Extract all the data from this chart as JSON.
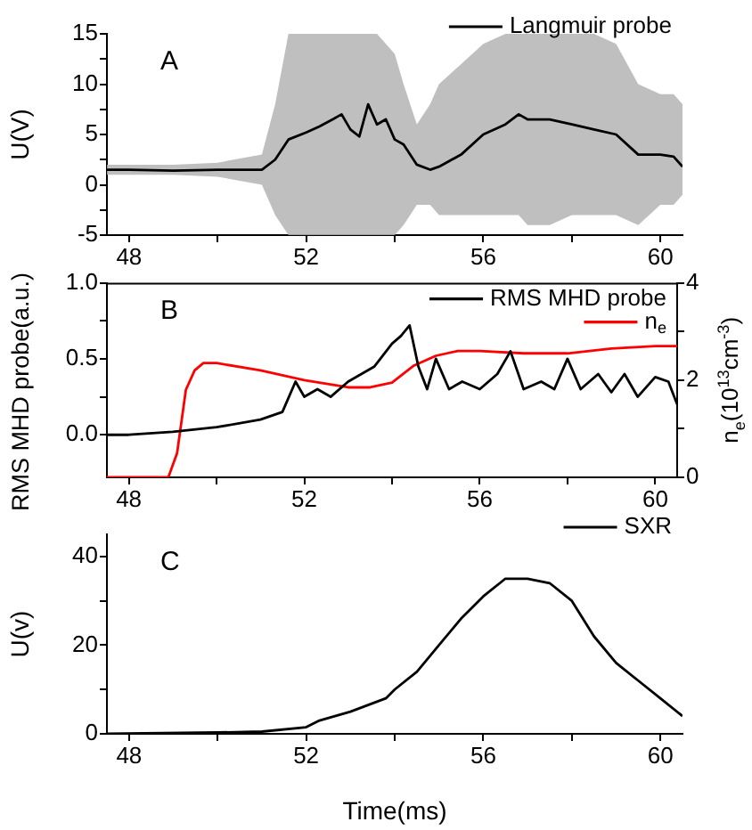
{
  "chart_data": [
    {
      "type": "line",
      "ylabel": "U(V)",
      "annotations": [
        "A"
      ],
      "xlim": [
        47.5,
        60.5
      ],
      "ylim": [
        -5,
        15
      ],
      "xticks": [
        48,
        {
          "value": 50,
          "label": null
        },
        52,
        {
          "value": 54,
          "label": null
        },
        56,
        {
          "value": 58,
          "label": null
        },
        60
      ],
      "yticks": [
        -5,
        {
          "value": -2.5,
          "label": null
        },
        0,
        {
          "value": 2.5,
          "label": null
        },
        5,
        {
          "value": 7.5,
          "label": null
        },
        10,
        {
          "value": 12.5,
          "label": null
        },
        15
      ],
      "grid": false,
      "legend": "top right",
      "marker": "none",
      "line_style": "solid",
      "series": [
        {
          "name": "Langmuir probe",
          "color": "#000000",
          "x": [
            47.5,
            48,
            49,
            50,
            51,
            51.3,
            51.6,
            52,
            52.3,
            52.6,
            52.8,
            53,
            53.2,
            53.4,
            53.6,
            53.8,
            54,
            54.2,
            54.5,
            54.8,
            55,
            55.5,
            56,
            56.5,
            56.8,
            57,
            57.5,
            58,
            58.5,
            59,
            59.5,
            60,
            60.3,
            60.5
          ],
          "values": [
            1.5,
            1.5,
            1.4,
            1.5,
            1.5,
            2.5,
            4.5,
            5.2,
            5.8,
            6.5,
            7,
            5.5,
            4.8,
            8,
            6,
            6.5,
            4.5,
            4,
            2,
            1.5,
            1.8,
            3,
            5,
            6,
            7,
            6.5,
            6.5,
            6,
            5.5,
            5,
            3,
            3,
            2.8,
            1.8
          ],
          "upper": [
            2,
            2,
            2,
            2.2,
            3,
            8,
            15,
            15,
            15,
            15,
            15,
            15,
            15,
            15,
            15,
            14,
            13,
            10,
            6,
            8,
            10,
            12,
            14,
            15,
            15,
            15,
            15,
            15,
            15,
            14,
            10,
            9,
            9,
            8
          ],
          "lower": [
            1,
            1,
            1,
            0.8,
            0,
            -3,
            -5,
            -5,
            -5,
            -5,
            -5,
            -5,
            -5,
            -5,
            -5,
            -5,
            -5,
            -4,
            -2,
            -2,
            -3,
            -3,
            -3,
            -3,
            -3,
            -4,
            -4,
            -3,
            -3,
            -3,
            -4,
            -2,
            -2,
            -1
          ]
        }
      ]
    },
    {
      "type": "line",
      "ylabel": "RMS MHD probe(a.u.)",
      "y2label": "n$_{e}$(10$^{13}$cm$^{-3}$)",
      "annotations": [
        "B"
      ],
      "xlim": [
        47.5,
        60.5
      ],
      "ylim": [
        -0.28,
        1.0
      ],
      "y2lim": [
        0,
        4
      ],
      "xticks": [
        48,
        {
          "value": 50,
          "label": null
        },
        52,
        {
          "value": 54,
          "label": null
        },
        56,
        {
          "value": 58,
          "label": null
        },
        60
      ],
      "yticks": [
        {
          "value": 0,
          "label": "0.0"
        },
        {
          "value": 0.25,
          "label": null
        },
        {
          "value": 0.5,
          "label": "0.5"
        },
        {
          "value": 0.75,
          "label": null
        },
        {
          "value": 1,
          "label": "1.0"
        }
      ],
      "y2ticks": [
        0,
        {
          "value": 1,
          "label": null
        },
        2,
        {
          "value": 3,
          "label": null
        },
        4
      ],
      "grid": false,
      "legend": "top right",
      "marker": "none",
      "line_style": "solid",
      "series": [
        {
          "name": "RMS MHD probe",
          "color": "#000000",
          "x": [
            47.5,
            48,
            49,
            50,
            51,
            51.5,
            51.8,
            52,
            52.3,
            52.6,
            53,
            53.3,
            53.6,
            54,
            54.2,
            54.4,
            54.6,
            54.8,
            55,
            55.3,
            55.6,
            56,
            56.4,
            56.7,
            57,
            57.4,
            57.7,
            58,
            58.3,
            58.7,
            59,
            59.3,
            59.6,
            60,
            60.3,
            60.5
          ],
          "values": [
            0.0,
            0.0,
            0.02,
            0.05,
            0.1,
            0.15,
            0.35,
            0.25,
            0.3,
            0.25,
            0.35,
            0.4,
            0.45,
            0.6,
            0.65,
            0.72,
            0.45,
            0.3,
            0.5,
            0.3,
            0.35,
            0.3,
            0.4,
            0.55,
            0.3,
            0.35,
            0.3,
            0.5,
            0.3,
            0.4,
            0.28,
            0.4,
            0.25,
            0.38,
            0.35,
            0.2
          ]
        },
        {
          "name": "n$_{e}$",
          "color": "#ff0000",
          "axis": "y2",
          "x": [
            47.5,
            48.9,
            49.1,
            49.3,
            49.5,
            49.7,
            50,
            51,
            52,
            53,
            53.5,
            54,
            54.5,
            55,
            55.5,
            56,
            57,
            58,
            59,
            60,
            60.5
          ],
          "values": [
            0,
            0,
            0.5,
            1.8,
            2.2,
            2.35,
            2.35,
            2.2,
            2.0,
            1.85,
            1.85,
            1.95,
            2.3,
            2.5,
            2.6,
            2.6,
            2.55,
            2.55,
            2.65,
            2.7,
            2.7
          ]
        }
      ]
    },
    {
      "type": "line",
      "ylabel": "U(v)",
      "xlabel": "Time(ms)",
      "annotations": [
        "C"
      ],
      "xlim": [
        47.5,
        60.5
      ],
      "ylim": [
        0,
        45
      ],
      "xticks": [
        48,
        {
          "value": 50,
          "label": null
        },
        52,
        {
          "value": 54,
          "label": null
        },
        56,
        {
          "value": 58,
          "label": null
        },
        60
      ],
      "yticks": [
        0,
        {
          "value": 10,
          "label": null
        },
        20,
        {
          "value": 30,
          "label": null
        },
        40
      ],
      "grid": false,
      "legend": "top right",
      "marker": "none",
      "line_style": "solid",
      "series": [
        {
          "name": "SXR",
          "color": "#000000",
          "x": [
            47.5,
            50,
            51,
            52,
            52.3,
            53,
            53.8,
            54,
            54.5,
            55,
            55.5,
            56,
            56.5,
            57,
            57.5,
            58,
            58.5,
            59,
            59.5,
            60,
            60.5
          ],
          "values": [
            0,
            0.3,
            0.5,
            1.5,
            3,
            5,
            8,
            10,
            14,
            20,
            26,
            31,
            35,
            35,
            34,
            30,
            22,
            16,
            12,
            8,
            4
          ]
        }
      ]
    }
  ]
}
